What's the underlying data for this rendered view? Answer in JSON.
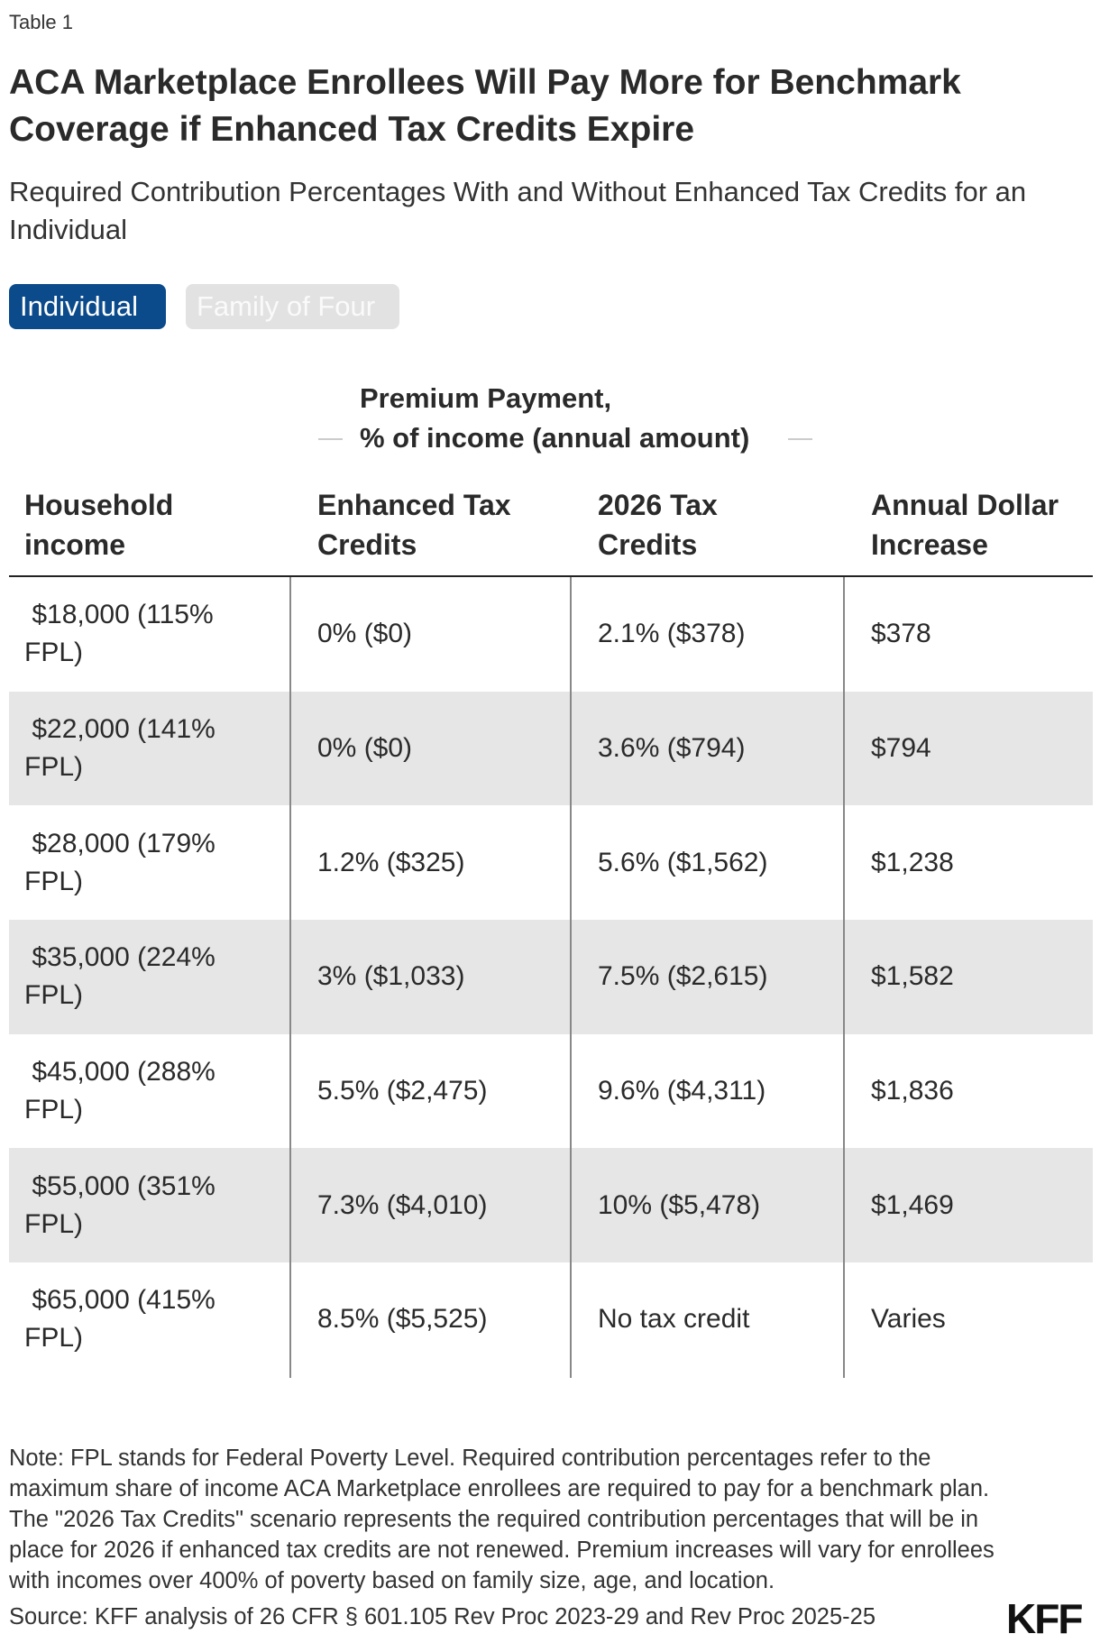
{
  "label": "Table 1",
  "title": "ACA Marketplace Enrollees Will Pay More for Benchmark Coverage if Enhanced Tax Credits Expire",
  "subtitle": "Required Contribution Percentages With and Without Enhanced Tax Credits for an Individual",
  "toggle": {
    "options": [
      "Individual",
      "Family of Four"
    ],
    "selected": "Individual"
  },
  "column_group": {
    "line1": "Premium Payment,",
    "line2": "% of income (annual amount)"
  },
  "columns": [
    "Household income",
    "Enhanced Tax Credits",
    "2026 Tax Credits",
    "Annual Dollar Increase"
  ],
  "rows": [
    [
      " $18,000 (115% FPL)",
      "0% ($0)",
      "2.1% ($378)",
      "$378"
    ],
    [
      " $22,000 (141% FPL)",
      "0% ($0)",
      "3.6% ($794)",
      "$794"
    ],
    [
      " $28,000 (179% FPL)",
      "1.2% ($325)",
      "5.6% ($1,562)",
      "$1,238"
    ],
    [
      " $35,000 (224% FPL)",
      "3% ($1,033)",
      "7.5% ($2,615)",
      "$1,582"
    ],
    [
      " $45,000 (288% FPL)",
      "5.5% ($2,475)",
      "9.6% ($4,311)",
      "$1,836"
    ],
    [
      " $55,000 (351% FPL)",
      "7.3% ($4,010)",
      "10% ($5,478)",
      "$1,469"
    ],
    [
      " $65,000 (415% FPL)",
      "8.5% ($5,525)",
      "No tax credit",
      "Varies"
    ]
  ],
  "note": "Note: FPL stands for Federal Poverty Level. Required contribution percentages refer to the maximum share of income ACA Marketplace enrollees are required to pay for a benchmark plan. The \"2026 Tax Credits\" scenario represents the required contribution percentages that will be in place for 2026 if enhanced tax credits are not renewed. Premium increases will vary for enrollees with incomes over 400% of poverty based on family size, age, and location.",
  "source": "Source: KFF analysis of 26 CFR § 601.105 Rev Proc 2023-29 and Rev Proc 2025-25",
  "logo": "KFF",
  "colors": {
    "accent": "#0b4a8b",
    "alt_row": "#e6e6e6"
  }
}
